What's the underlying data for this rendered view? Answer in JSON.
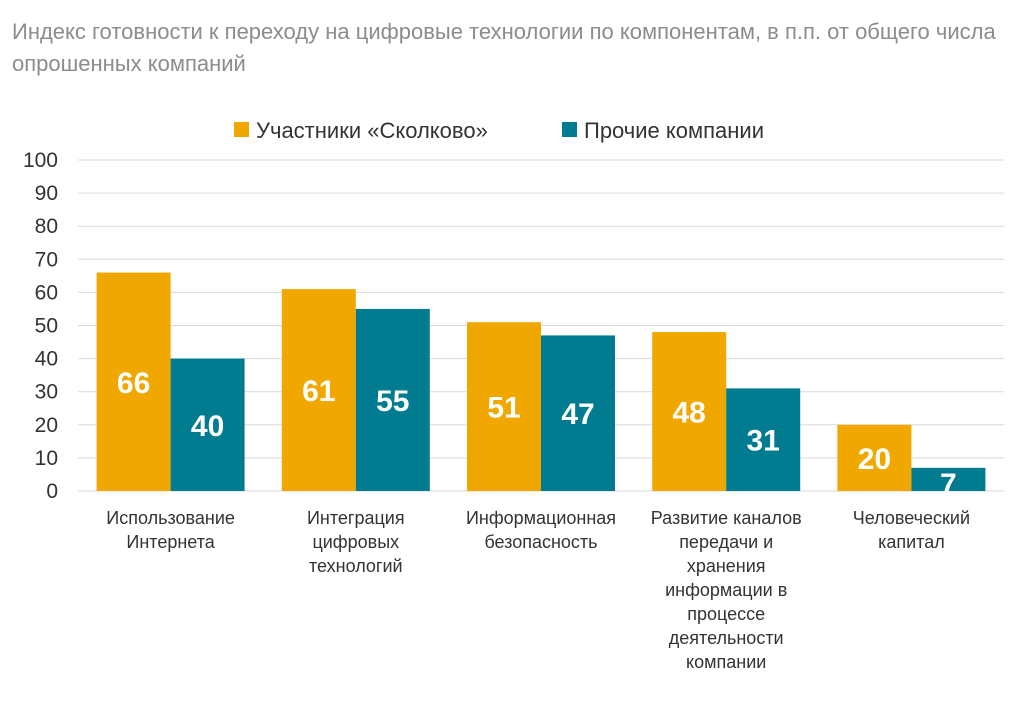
{
  "chart_data": {
    "type": "bar",
    "title": "Индекс готовности к переходу на цифровые технологии по компонентам, в п.п. от общего числа опрошенных компаний",
    "categories": [
      [
        "Использование",
        "Интернета"
      ],
      [
        "Интеграция",
        "цифровых",
        "технологий"
      ],
      [
        "Информационная",
        "безопасность"
      ],
      [
        "Развитие каналов",
        "передачи и",
        "хранения",
        "информации в",
        "процессе",
        "деятельности",
        "компании"
      ],
      [
        "Человеческий",
        "капитал"
      ]
    ],
    "series": [
      {
        "name": "Участники «Сколково»",
        "color": "#F0A800",
        "values": [
          66,
          61,
          51,
          48,
          20
        ]
      },
      {
        "name": "Прочие компании",
        "color": "#007B8F",
        "values": [
          40,
          55,
          47,
          31,
          7
        ]
      }
    ],
    "ylim": [
      0,
      100
    ],
    "yticks": [
      0,
      10,
      20,
      30,
      40,
      50,
      60,
      70,
      80,
      90,
      100
    ],
    "grid": true,
    "legend": "top-center",
    "data_labels": true
  }
}
